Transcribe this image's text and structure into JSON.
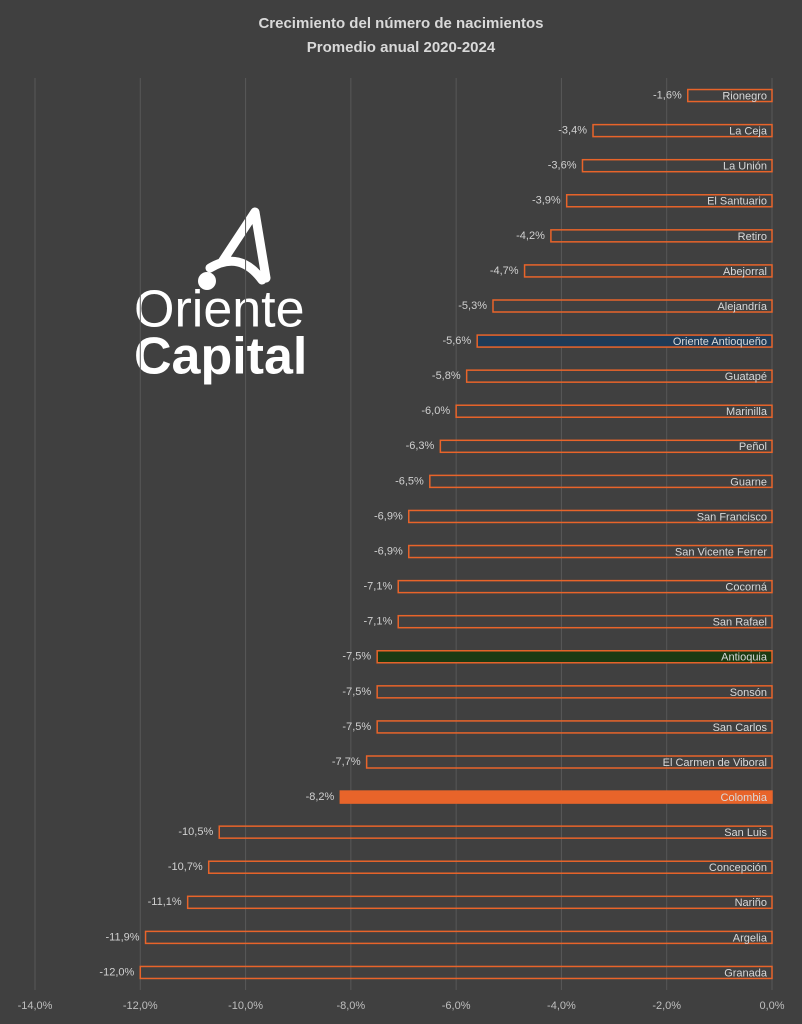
{
  "chart_data": {
    "type": "hbar",
    "title": "Crecimiento del número de nacimientos",
    "subtitle": "Promedio anual 2020-2024",
    "logo": {
      "line1": "Oriente",
      "line2": "Capital"
    },
    "categories": [
      "Rionegro",
      "La Ceja",
      "La Unión",
      "El Santuario",
      "Retiro",
      "Abejorral",
      "Alejandría",
      "Oriente Antioqueño",
      "Guatapé",
      "Marinilla",
      "Peñol",
      "Guarne",
      "San Francisco",
      "San Vicente Ferrer",
      "Cocorná",
      "San Rafael",
      "Antioquia",
      "Sonsón",
      "San Carlos",
      "El Carmen de Viboral",
      "Colombia",
      "San Luis",
      "Concepción",
      "Nariño",
      "Argelia",
      "Granada"
    ],
    "values": [
      -1.6,
      -3.4,
      -3.6,
      -3.9,
      -4.2,
      -4.7,
      -5.3,
      -5.6,
      -5.8,
      -6.0,
      -6.3,
      -6.5,
      -6.9,
      -6.9,
      -7.1,
      -7.1,
      -7.5,
      -7.5,
      -7.5,
      -7.7,
      -8.2,
      -10.5,
      -10.7,
      -11.1,
      -11.9,
      -12.0
    ],
    "value_labels": [
      "-1,6%",
      "-3,4%",
      "-3,6%",
      "-3,9%",
      "-4,2%",
      "-4,7%",
      "-5,3%",
      "-5,6%",
      "-5,8%",
      "-6,0%",
      "-6,3%",
      "-6,5%",
      "-6,9%",
      "-6,9%",
      "-7,1%",
      "-7,1%",
      "-7,5%",
      "-7,5%",
      "-7,5%",
      "-7,7%",
      "-8,2%",
      "-10,5%",
      "-10,7%",
      "-11,1%",
      "-11,9%",
      "-12,0%"
    ],
    "edge_color": "#e8642a",
    "colors": [
      "none",
      "none",
      "none",
      "none",
      "none",
      "none",
      "none",
      "#1f3b57",
      "none",
      "none",
      "none",
      "none",
      "none",
      "none",
      "none",
      "none",
      "#1c3a12",
      "none",
      "none",
      "none",
      "#e8642a",
      "none",
      "none",
      "none",
      "none",
      "none"
    ],
    "xlim": [
      -14,
      0
    ],
    "xticks": [
      {
        "value": -14,
        "label": "-14,0%"
      },
      {
        "value": -12,
        "label": "-12,0%"
      },
      {
        "value": -10,
        "label": "-10,0%"
      },
      {
        "value": -8,
        "label": "-8,0%"
      },
      {
        "value": -6,
        "label": "-6,0%"
      },
      {
        "value": -4,
        "label": "-4,0%"
      },
      {
        "value": -2,
        "label": "-2,0%"
      },
      {
        "value": 0,
        "label": "0,0%"
      }
    ],
    "grid": true
  }
}
